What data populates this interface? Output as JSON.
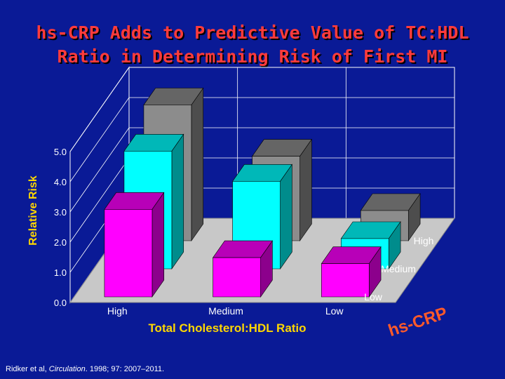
{
  "title": {
    "line1": "hs-CRP Adds to Predictive Value of TC:HDL",
    "line2": "Ratio in Determining Risk of First MI"
  },
  "footnote": {
    "author": "Ridker et al, ",
    "journal": "Circulation",
    "citation": ". 1998; 97: 2007–2011."
  },
  "colors": {
    "background": "#0a1a96",
    "title": "#ff3b3b",
    "axis_label": "#ffd700",
    "tick_text": "#ffffff"
  },
  "chart_data": {
    "type": "bar",
    "subtype": "3d-grouped",
    "ylabel": "Relative Risk",
    "xlabel": "Total Cholesterol:HDL Ratio",
    "zlabel": "hs-CRP",
    "ylim": [
      0,
      5
    ],
    "yticks": [
      "0.0",
      "1.0",
      "2.0",
      "3.0",
      "4.0",
      "5.0"
    ],
    "categories": [
      "High",
      "Medium",
      "Low"
    ],
    "depth_categories": [
      "Low",
      "Medium",
      "High"
    ],
    "series": [
      {
        "name": "Low",
        "color": "#ff00ff",
        "values": [
          2.9,
          1.3,
          1.1
        ]
      },
      {
        "name": "Medium",
        "color": "#00ffff",
        "values": [
          3.9,
          2.9,
          1.0
        ]
      },
      {
        "name": "High",
        "color": "#8c8c8c",
        "values": [
          4.5,
          2.8,
          1.0
        ]
      }
    ],
    "grid": true
  }
}
